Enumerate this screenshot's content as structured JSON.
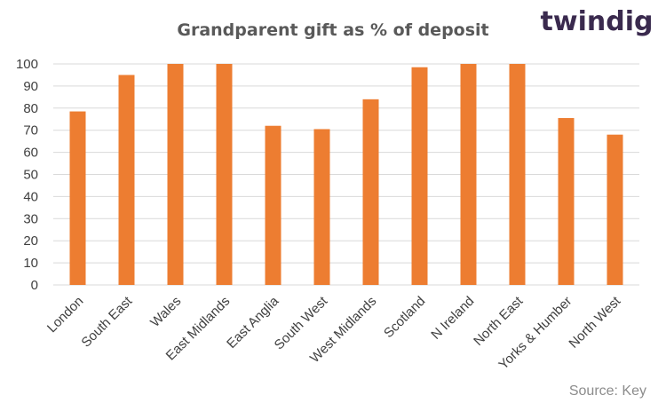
{
  "brand": {
    "logo_text": "twindig"
  },
  "source": "Source: Key",
  "chart_data": {
    "type": "bar",
    "title": "Grandparent gift as % of deposit",
    "xlabel": "",
    "ylabel": "",
    "ylim": [
      0,
      100
    ],
    "yticks": [
      0,
      10,
      20,
      30,
      40,
      50,
      60,
      70,
      80,
      90,
      100
    ],
    "grid": true,
    "bar_color": "#ed7d31",
    "categories": [
      "London",
      "South East",
      "Wales",
      "East Midlands",
      "East Anglia",
      "South West",
      "West Midlands",
      "Scotland",
      "N Ireland",
      "North East",
      "Yorks & Humber",
      "North West"
    ],
    "values": [
      78.5,
      95,
      100,
      100,
      72,
      70.5,
      84,
      98.5,
      100,
      100,
      75.5,
      68
    ]
  }
}
